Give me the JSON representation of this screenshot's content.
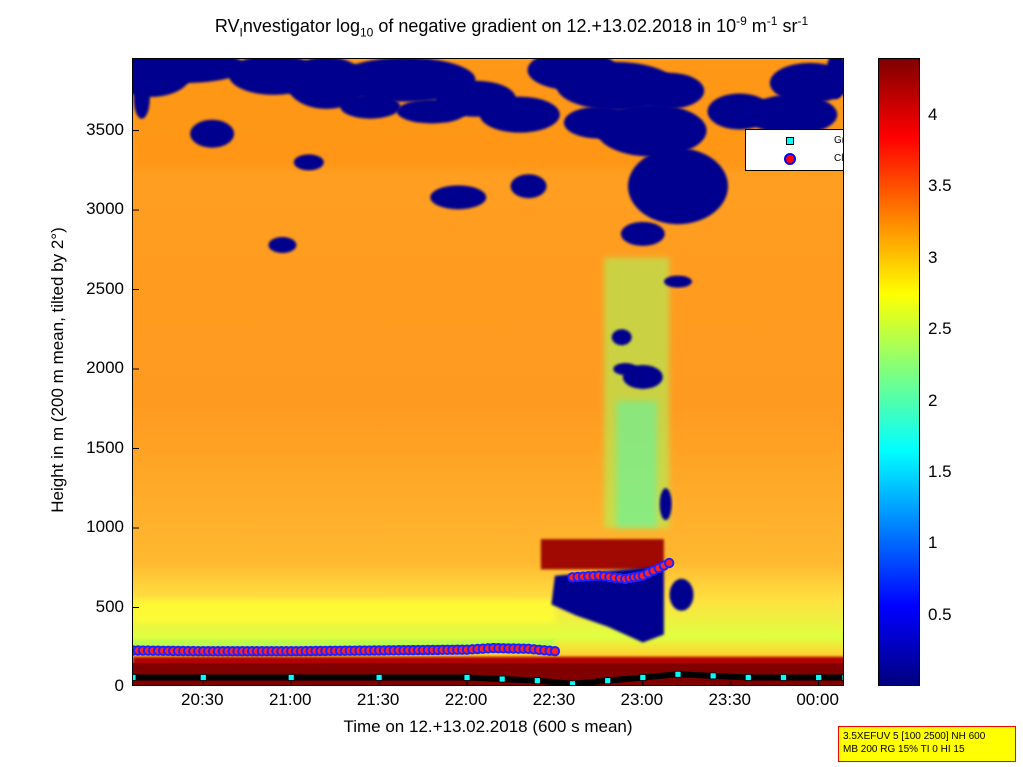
{
  "title": {
    "prefix": "RV",
    "sub1": "I",
    "part2": "nvestigator log",
    "sub2": "10",
    "part3": " of negative gradient on 12.+13.02.2018 in 10",
    "sup1": "-9",
    "part4": " m",
    "sup2": "-1",
    "part5": " sr",
    "sup3": "-1"
  },
  "chart_data": {
    "type": "heatmap",
    "xlabel": "Time on 12.+13.02.2018 (600 s mean)",
    "ylabel": "Height in m (200 m mean, tilted by 2°)",
    "x_ticks": [
      "20:30",
      "21:00",
      "21:30",
      "22:00",
      "22:30",
      "23:00",
      "23:30",
      "00:00"
    ],
    "y_ticks": [
      "0",
      "500",
      "1000",
      "1500",
      "2000",
      "2500",
      "3000",
      "3500"
    ],
    "xlim_hours": [
      20.1,
      24.15
    ],
    "x_tick_hours": [
      20.5,
      21.0,
      21.5,
      22.0,
      22.5,
      23.0,
      23.5,
      24.0
    ],
    "ylim": [
      0,
      3950
    ],
    "y_tick_values": [
      0,
      500,
      1000,
      1500,
      2000,
      2500,
      3000,
      3500
    ],
    "colorbar": {
      "ticks": [
        "0.5",
        "1",
        "1.5",
        "2",
        "2.5",
        "3",
        "3.5",
        "4"
      ],
      "tick_values": [
        0.5,
        1,
        1.5,
        2,
        2.5,
        3,
        3.5,
        4
      ],
      "range": [
        0,
        4.4
      ],
      "colormap": "jet"
    },
    "legend": {
      "placement": "top-right",
      "entries": [
        {
          "label": "Gradient local minimum",
          "marker": "square",
          "color": "#00ffff"
        },
        {
          "label": "Cloud",
          "marker": "circle",
          "color": "#ff0000",
          "edge": "#0000ff"
        }
      ]
    },
    "series": [
      {
        "name": "Cloud",
        "x": [
          20.1,
          20.5,
          21.0,
          21.5,
          22.0,
          22.15,
          22.35,
          22.5,
          22.6,
          22.75,
          22.9,
          23.0,
          23.15
        ],
        "y": [
          230,
          225,
          225,
          230,
          235,
          245,
          240,
          225,
          690,
          700,
          680,
          700,
          780
        ]
      },
      {
        "name": "Gradient local minimum",
        "x": [
          20.1,
          20.5,
          21.0,
          21.5,
          22.0,
          22.2,
          22.4,
          22.6,
          22.8,
          23.0,
          23.2,
          23.4,
          23.6,
          23.8,
          24.0,
          24.15
        ],
        "y": [
          60,
          60,
          60,
          60,
          60,
          50,
          40,
          20,
          40,
          60,
          80,
          70,
          60,
          60,
          60,
          60
        ]
      }
    ]
  },
  "info_box": {
    "line1": "3.5XEFUV 5 [100 2500] NH 600",
    "line2": "MB 200 RG 15% TI 0 HI 15"
  }
}
